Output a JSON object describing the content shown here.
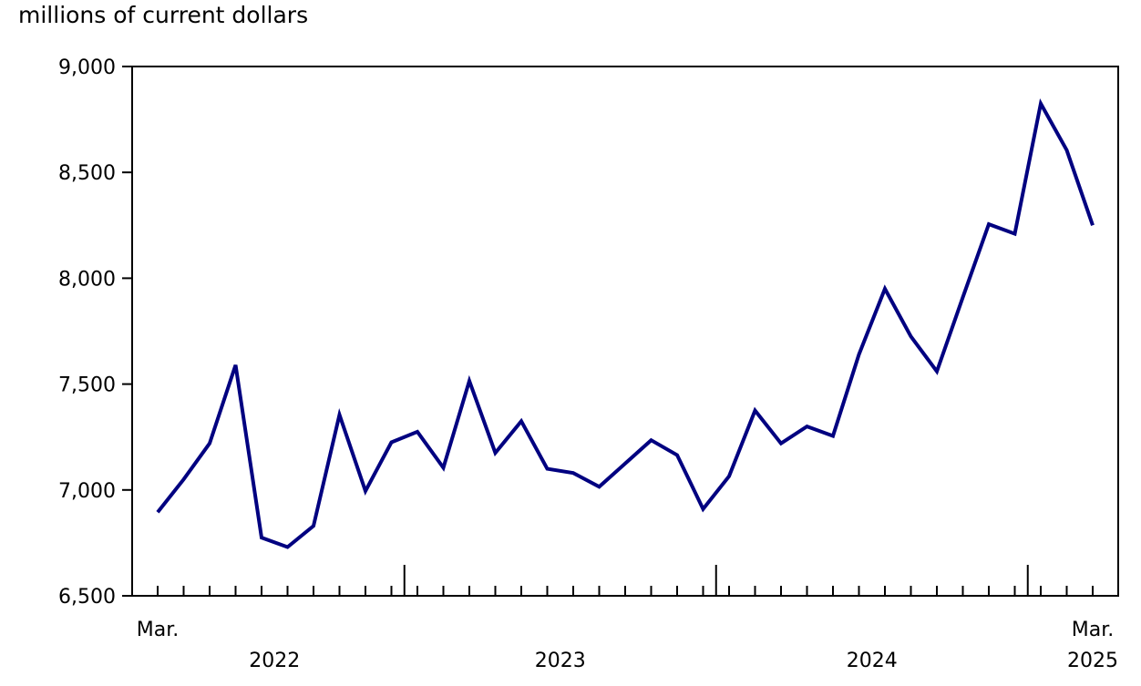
{
  "chart_data": {
    "type": "line",
    "ylabel": "millions of current dollars",
    "ylim": [
      6500,
      9000
    ],
    "yticks": [
      {
        "value": 6500,
        "label": "6,500"
      },
      {
        "value": 7000,
        "label": "7,000"
      },
      {
        "value": 7500,
        "label": "7,500"
      },
      {
        "value": 8000,
        "label": "8,000"
      },
      {
        "value": 8500,
        "label": "8,500"
      },
      {
        "value": 9000,
        "label": "9,000"
      }
    ],
    "x": [
      "2022-03",
      "2022-04",
      "2022-05",
      "2022-06",
      "2022-07",
      "2022-08",
      "2022-09",
      "2022-10",
      "2022-11",
      "2022-12",
      "2023-01",
      "2023-02",
      "2023-03",
      "2023-04",
      "2023-05",
      "2023-06",
      "2023-07",
      "2023-08",
      "2023-09",
      "2023-10",
      "2023-11",
      "2023-12",
      "2024-01",
      "2024-02",
      "2024-03",
      "2024-04",
      "2024-05",
      "2024-06",
      "2024-07",
      "2024-08",
      "2024-09",
      "2024-10",
      "2024-11",
      "2024-12",
      "2025-01",
      "2025-02",
      "2025-03"
    ],
    "series": [
      {
        "color": "#000080",
        "values": [
          6895,
          7050,
          7220,
          7590,
          6775,
          6730,
          6830,
          7355,
          6995,
          7225,
          7275,
          7105,
          7515,
          7175,
          7325,
          7100,
          7080,
          7015,
          7125,
          7235,
          7165,
          6910,
          7065,
          7375,
          7220,
          7300,
          7255,
          7640,
          7950,
          7725,
          7560,
          7910,
          8255,
          8210,
          8825,
          8605,
          8250
        ]
      }
    ],
    "x_labels": [
      {
        "index": 0,
        "label": "Mar."
      },
      {
        "index": 36,
        "label": "Mar."
      }
    ],
    "year_labels": [
      {
        "label": "2022",
        "start": 0,
        "end": 9
      },
      {
        "label": "2023",
        "start": 10,
        "end": 21
      },
      {
        "label": "2024",
        "start": 22,
        "end": 33
      },
      {
        "label": "2025",
        "start": 34,
        "end": 36
      }
    ],
    "year_boundaries": [
      9.5,
      21.5,
      33.5
    ],
    "grid": false,
    "legend": "none"
  }
}
